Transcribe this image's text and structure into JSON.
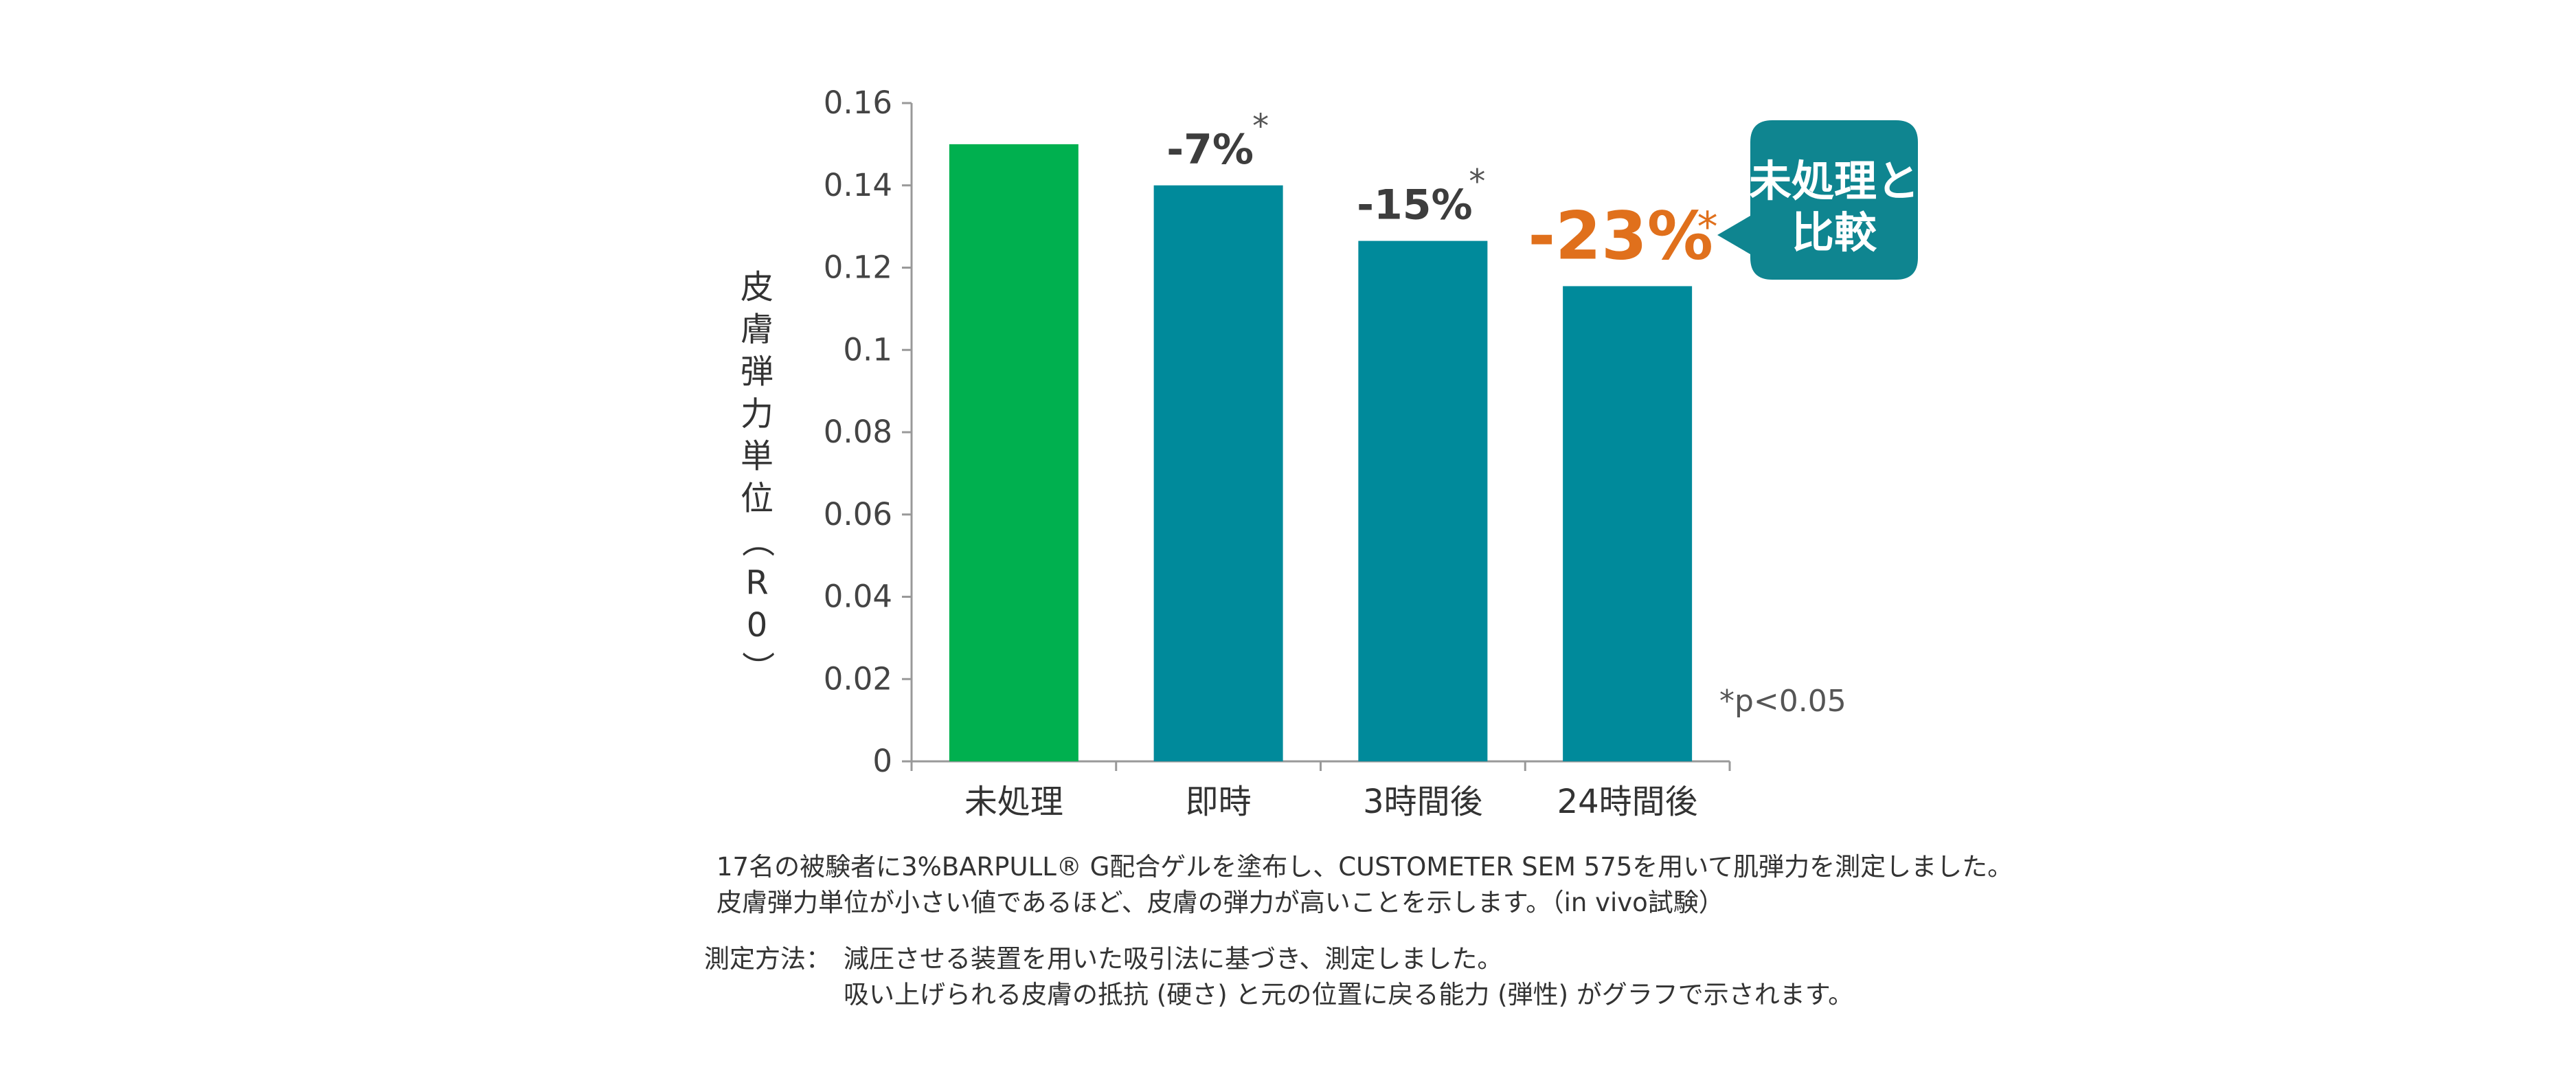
{
  "chart_data": {
    "type": "bar",
    "categories": [
      "未処理",
      "即時",
      "3時間後",
      "24時間後"
    ],
    "values": [
      0.15,
      0.14,
      0.1265,
      0.1155
    ],
    "bar_labels": [
      "",
      "-7%",
      "-15%",
      "-23%"
    ],
    "significance_marks": [
      "",
      "*",
      "*",
      "*"
    ],
    "ylabel": "皮膚弾力単位（R0）",
    "ylabel_chars": [
      "皮",
      "膚",
      "弾",
      "力",
      "単",
      "位",
      "（",
      "R",
      "0",
      "）"
    ],
    "ylim": [
      0,
      0.16
    ],
    "yticks": [
      "0",
      "0.02",
      "0.04",
      "0.06",
      "0.08",
      "0.1",
      "0.12",
      "0.14",
      "0.16"
    ],
    "ytick_values": [
      0,
      0.02,
      0.04,
      0.06,
      0.08,
      0.1,
      0.12,
      0.14,
      0.16
    ],
    "significance_note": "*p<0.05",
    "callout": [
      "未処理と",
      "比較"
    ],
    "colors": {
      "untreated": "#00b04f",
      "treated": "#008a9b",
      "highlight": "#e0701c",
      "callout": "#0f8590"
    }
  },
  "notes": {
    "line1": "17名の被験者に3%BARPULL® G配合ゲルを塗布し、CUSTOMETER SEM 575を用いて肌弾力を測定しました。",
    "line2": "皮膚弾力単位が小さい値であるほど、皮膚の弾力が高いことを示します。（in vivo試験）",
    "method_label": "測定方法：",
    "method_line1": "減圧させる装置を用いた吸引法に基づき、測定しました。",
    "method_line2": "吸い上げられる皮膚の抵抗 (硬さ) と元の位置に戻る能力 (弾性) がグラフで示されます。"
  }
}
